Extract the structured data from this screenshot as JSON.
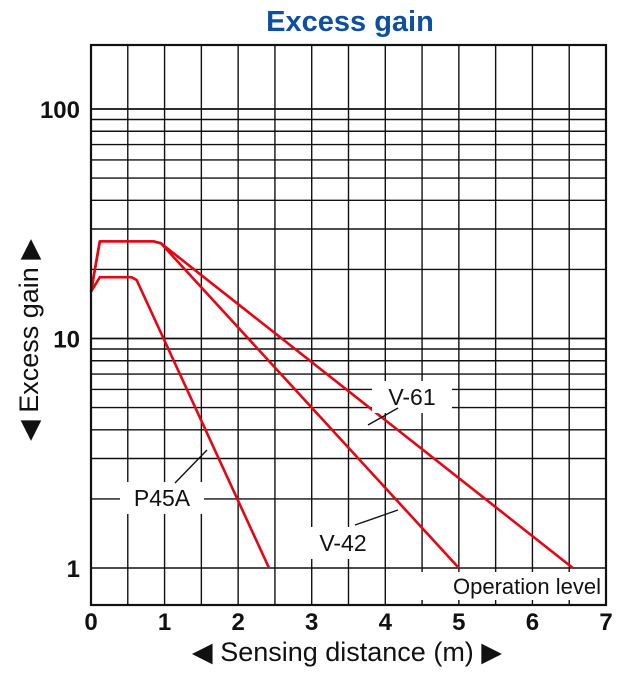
{
  "chart_data": {
    "type": "line",
    "title": "Excess gain",
    "xlabel": "◀ Sensing distance (m) ▶",
    "ylabel": "◀ Excess gain ▶",
    "x_scale": "linear",
    "y_scale": "log",
    "xlim": [
      0,
      7
    ],
    "ylim": [
      0.76,
      200
    ],
    "x_ticks": [
      "0",
      "1",
      "2",
      "3",
      "4",
      "5",
      "6",
      "7"
    ],
    "y_ticks": [
      "1",
      "10",
      "100"
    ],
    "grid": true,
    "operation_level": {
      "y": 1,
      "label": "Operation level"
    },
    "series": [
      {
        "name": "P45A",
        "color": "#e30613",
        "points": [
          [
            0,
            16
          ],
          [
            0.12,
            18.5
          ],
          [
            0.55,
            18.5
          ],
          [
            0.62,
            18
          ],
          [
            2.42,
            1
          ]
        ]
      },
      {
        "name": "V-42",
        "color": "#e30613",
        "points": [
          [
            0,
            16
          ],
          [
            0.12,
            26.5
          ],
          [
            0.85,
            26.5
          ],
          [
            0.95,
            26
          ],
          [
            5.0,
            1
          ]
        ]
      },
      {
        "name": "V-61",
        "color": "#e30613",
        "points": [
          [
            0,
            16
          ],
          [
            0.12,
            26.5
          ],
          [
            0.85,
            26.5
          ],
          [
            0.95,
            26
          ],
          [
            6.55,
            1
          ]
        ]
      }
    ],
    "annotations": [
      {
        "series": "P45A",
        "text": "P45A"
      },
      {
        "series": "V-42",
        "text": "V-42"
      },
      {
        "series": "V-61",
        "text": "V-61"
      }
    ],
    "colors": {
      "title": "#0d4fa0",
      "lines": "#e30613",
      "grid": "#111111",
      "text": "#111111"
    }
  }
}
